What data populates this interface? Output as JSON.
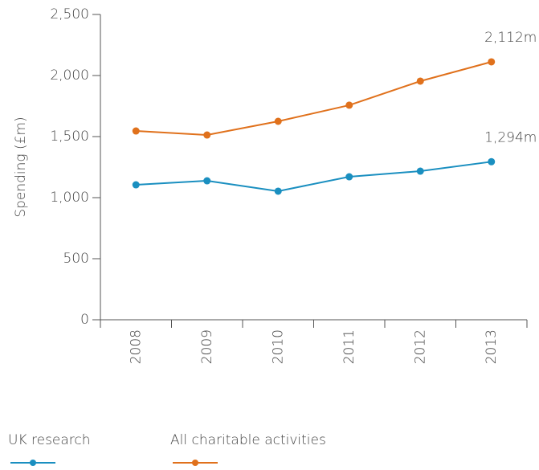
{
  "chart_data": {
    "type": "line",
    "y_label": "Spending (£m)",
    "categories": [
      "2008",
      "2009",
      "2010",
      "2011",
      "2012",
      "2013"
    ],
    "series": [
      {
        "name": "UK research",
        "color": "#1a8fc0",
        "values": [
          1105,
          1138,
          1053,
          1171,
          1217,
          1294
        ],
        "value_labels": [
          null,
          null,
          null,
          null,
          null,
          "1,294m"
        ]
      },
      {
        "name": "All charitable activities",
        "color": "#e0711c",
        "values": [
          1546,
          1513,
          1625,
          1757,
          1954,
          2112
        ],
        "value_labels": [
          null,
          null,
          null,
          null,
          null,
          "2,112m"
        ]
      }
    ],
    "ylim": [
      0,
      2500
    ],
    "yticks": [
      0,
      500,
      {
        "value": 1000,
        "label": "1,000"
      },
      {
        "value": 1500,
        "label": "1,500"
      },
      {
        "value": 2000,
        "label": "2,000"
      },
      {
        "value": 2500,
        "label": "2,500"
      }
    ],
    "legend": "bottom"
  }
}
